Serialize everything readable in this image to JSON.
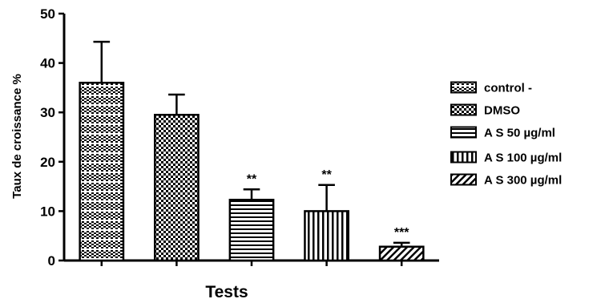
{
  "chart_data": {
    "type": "bar",
    "title": "",
    "xlabel": "Tests",
    "ylabel": "Taux de croissance %",
    "ylim": [
      0,
      50
    ],
    "yticks": [
      "0",
      "10",
      "20",
      "30",
      "40",
      "50"
    ],
    "categories": [
      "control -",
      "DMSO",
      "A S 50  µg/ml",
      "A S 100  µg/ml",
      "A S 300 µg/ml"
    ],
    "values": [
      36,
      29.5,
      12.3,
      10,
      2.8
    ],
    "error_upper": [
      44.3,
      33.6,
      14.4,
      15.3,
      3.6
    ],
    "significance": [
      "",
      "",
      "**",
      "**",
      "***"
    ],
    "legend": {
      "position": "right",
      "entries": [
        "control -",
        "DMSO",
        "A S 50  µg/ml",
        "A S 100  µg/ml",
        "A S 300 µg/ml"
      ]
    },
    "patterns": [
      "checker-striped",
      "checker",
      "horizontal-lines",
      "vertical-lines",
      "diagonal-lines"
    ],
    "grid": false,
    "colors": {
      "ink": "#000000",
      "background": "#ffffff"
    }
  }
}
